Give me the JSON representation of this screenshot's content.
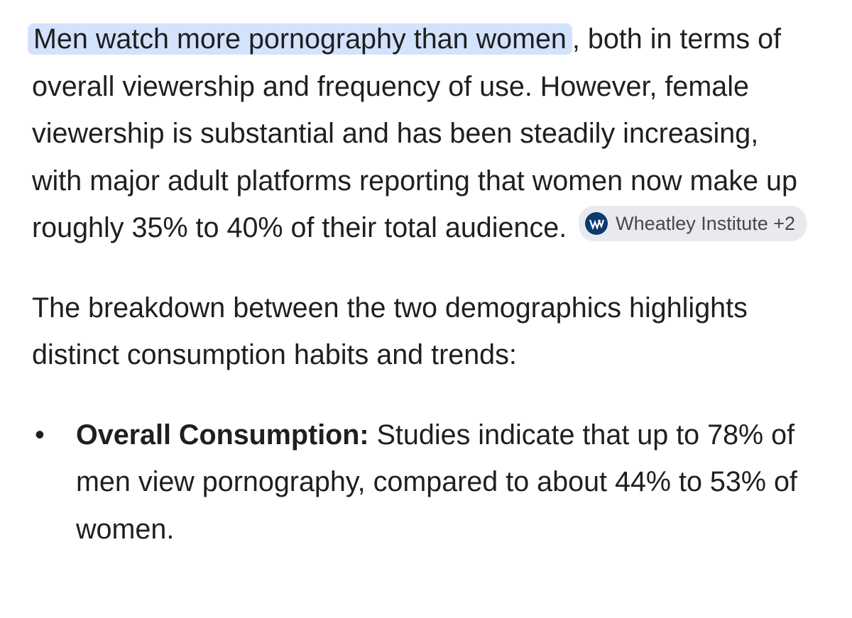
{
  "paragraphs": [
    {
      "highlight": "Men watch more pornography than women",
      "text": ", both in terms of overall viewership and frequency of use. However, female viewership is substantial and has been steadily increasing, with major adult platforms reporting that women now make up roughly 35% to 40% of their total audience.",
      "source_chip": "Wheatley Institute +2"
    },
    {
      "text": "The breakdown between the two demographics highlights distinct consumption habits and trends:"
    }
  ],
  "list": [
    {
      "label": "Overall Consumption:",
      "text": "Studies indicate that up to 78% of men view pornography, compared to about 44% to 53% of women."
    }
  ]
}
